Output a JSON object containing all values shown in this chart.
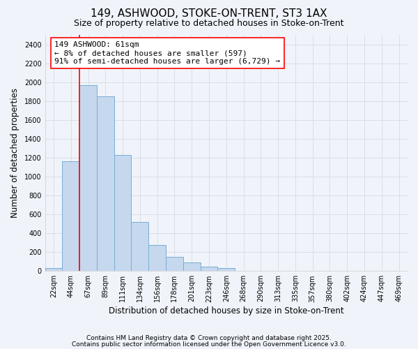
{
  "title1": "149, ASHWOOD, STOKE-ON-TRENT, ST3 1AX",
  "title2": "Size of property relative to detached houses in Stoke-on-Trent",
  "xlabel": "Distribution of detached houses by size in Stoke-on-Trent",
  "ylabel": "Number of detached properties",
  "categories": [
    "22sqm",
    "44sqm",
    "67sqm",
    "89sqm",
    "111sqm",
    "134sqm",
    "156sqm",
    "178sqm",
    "201sqm",
    "223sqm",
    "246sqm",
    "268sqm",
    "290sqm",
    "313sqm",
    "335sqm",
    "357sqm",
    "380sqm",
    "402sqm",
    "424sqm",
    "447sqm",
    "469sqm"
  ],
  "values": [
    30,
    1160,
    1970,
    1850,
    1230,
    520,
    275,
    150,
    90,
    45,
    35,
    0,
    0,
    0,
    0,
    0,
    0,
    0,
    0,
    0,
    0
  ],
  "bar_color": "#c5d8ee",
  "bar_edge_color": "#7aadd4",
  "ylim": [
    0,
    2500
  ],
  "yticks": [
    0,
    200,
    400,
    600,
    800,
    1000,
    1200,
    1400,
    1600,
    1800,
    2000,
    2200,
    2400
  ],
  "red_line_x": 1.5,
  "annotation_text": "149 ASHWOOD: 61sqm\n← 8% of detached houses are smaller (597)\n91% of semi-detached houses are larger (6,729) →",
  "footer1": "Contains HM Land Registry data © Crown copyright and database right 2025.",
  "footer2": "Contains public sector information licensed under the Open Government Licence v3.0.",
  "background_color": "#f0f4fa",
  "grid_color": "#d8dde8",
  "title_fontsize": 11,
  "subtitle_fontsize": 9,
  "tick_fontsize": 7,
  "axis_label_fontsize": 8.5,
  "footer_fontsize": 6.5,
  "annot_fontsize": 8
}
